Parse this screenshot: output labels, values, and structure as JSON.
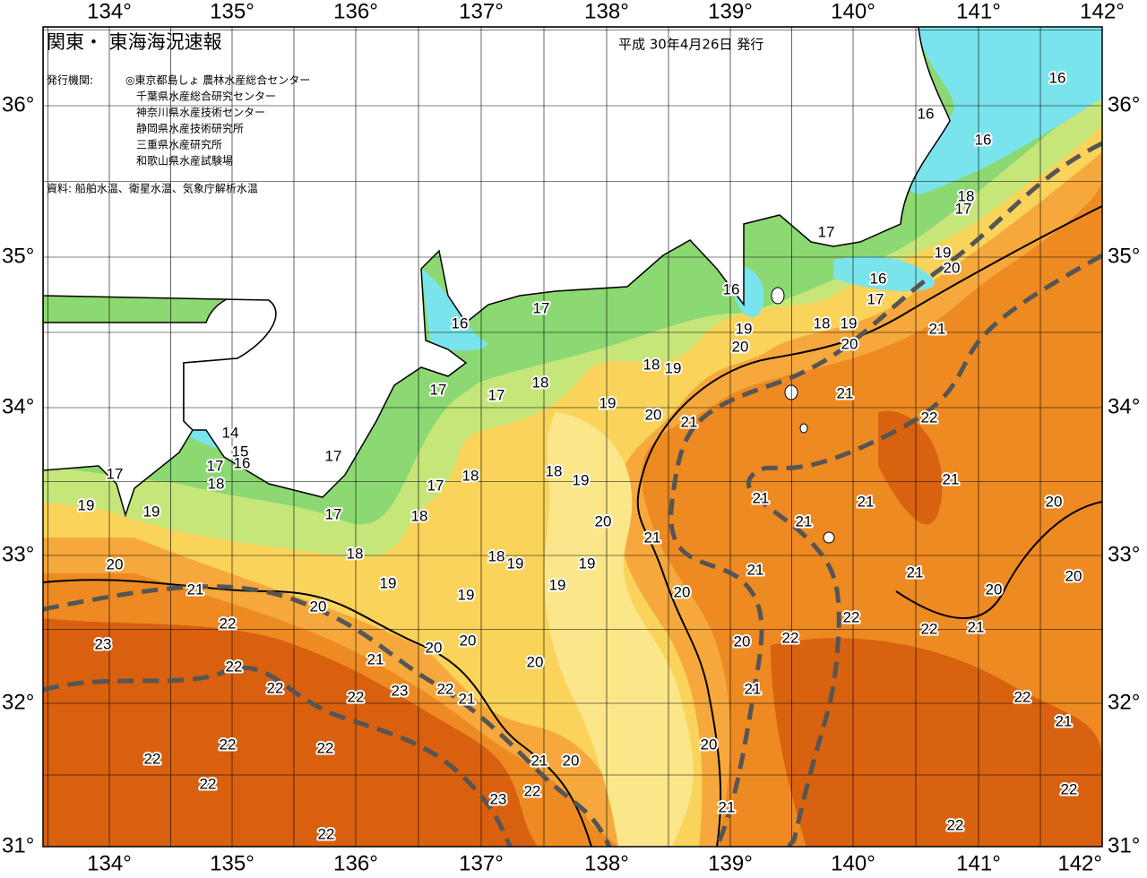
{
  "header": {
    "title": "関東・ 東海海況速報",
    "date": "平成 30年4月26日 発行"
  },
  "issuers": {
    "label": "発行機関:",
    "items": [
      "◎東京都島しょ 農林水産総合センター",
      "千葉県水産総合研究センター",
      "神奈川県水産技術センター",
      "静岡県水産技術研究所",
      "三重県水産研究所",
      "和歌山県水産試験場"
    ]
  },
  "source": "資料: 船舶水温、衛星水温、気象庁解析水温",
  "axes": {
    "longitudes": [
      "134°",
      "135°",
      "136°",
      "137°",
      "138°",
      "139°",
      "140°",
      "141°",
      "142°"
    ],
    "latitudes": [
      "36°",
      "35°",
      "34°",
      "33°",
      "32°",
      "31°"
    ]
  },
  "isotherm_labels": [
    "16",
    "16",
    "16",
    "18",
    "17",
    "17",
    "19",
    "20",
    "16",
    "17",
    "16",
    "19",
    "18",
    "19",
    "20",
    "20",
    "21",
    "17",
    "16",
    "18",
    "19",
    "17",
    "17",
    "18",
    "19",
    "20",
    "21",
    "21",
    "22",
    "14",
    "15",
    "16",
    "17",
    "17",
    "17",
    "18",
    "18",
    "18",
    "19",
    "17",
    "19",
    "19",
    "17",
    "18",
    "20",
    "21",
    "21",
    "21",
    "21",
    "20",
    "21",
    "18",
    "18",
    "19",
    "19",
    "21",
    "21",
    "20",
    "20",
    "21",
    "19",
    "19",
    "19",
    "20",
    "20",
    "20",
    "22",
    "22",
    "22",
    "21",
    "23",
    "20",
    "20",
    "22",
    "20",
    "21",
    "22",
    "20",
    "22",
    "23",
    "22",
    "21",
    "22",
    "21",
    "22",
    "21",
    "22",
    "22",
    "20",
    "22",
    "21",
    "20",
    "22",
    "23",
    "22",
    "22",
    "21",
    "22",
    "22"
  ]
}
